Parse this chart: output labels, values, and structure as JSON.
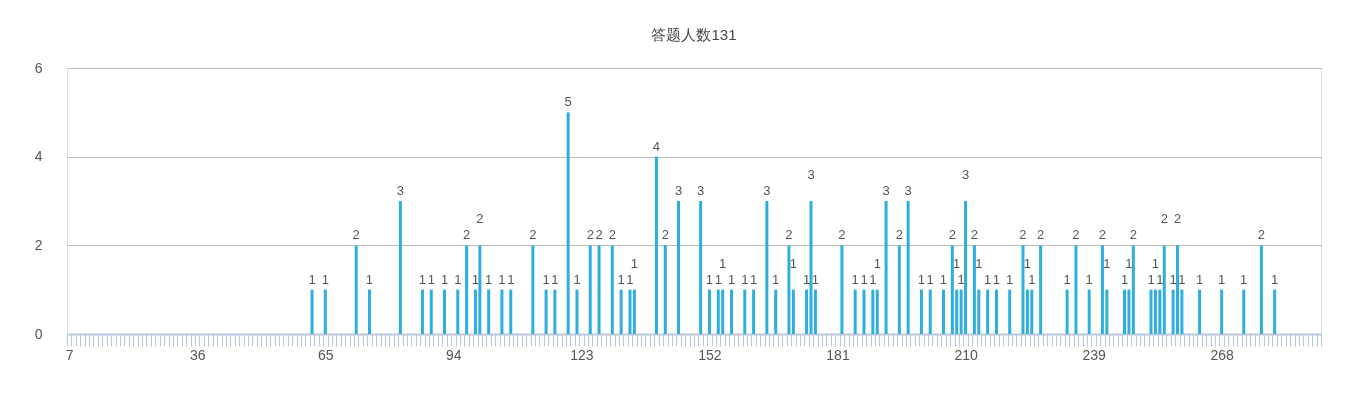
{
  "chart_data": {
    "type": "bar",
    "title": "答题人数131",
    "categories": [
      "7",
      null,
      null,
      null,
      null,
      null,
      null,
      null,
      null,
      null,
      null,
      null,
      null,
      null,
      null,
      null,
      null,
      null,
      null,
      null,
      null,
      null,
      null,
      null,
      null,
      null,
      null,
      null,
      null,
      "36",
      null,
      null,
      null,
      null,
      null,
      null,
      null,
      null,
      null,
      null,
      null,
      null,
      null,
      null,
      null,
      null,
      null,
      null,
      null,
      null,
      null,
      null,
      null,
      null,
      null,
      null,
      null,
      null,
      "65",
      null,
      null,
      null,
      null,
      null,
      null,
      null,
      null,
      null,
      null,
      null,
      null,
      null,
      null,
      null,
      null,
      null,
      null,
      null,
      null,
      null,
      null,
      null,
      null,
      null,
      null,
      null,
      null,
      "94",
      null,
      null,
      null,
      null,
      null,
      null,
      null,
      null,
      null,
      null,
      null,
      null,
      null,
      null,
      null,
      null,
      null,
      null,
      null,
      null,
      null,
      null,
      null,
      null,
      null,
      null,
      null,
      null,
      "123",
      null,
      null,
      null,
      null,
      null,
      null,
      null,
      null,
      null,
      null,
      null,
      null,
      null,
      null,
      null,
      null,
      null,
      null,
      null,
      null,
      null,
      null,
      null,
      null,
      null,
      null,
      null,
      null,
      "152",
      null,
      null,
      null,
      null,
      null,
      null,
      null,
      null,
      null,
      null,
      null,
      null,
      null,
      null,
      null,
      null,
      null,
      null,
      null,
      null,
      null,
      null,
      null,
      null,
      null,
      null,
      null,
      null,
      "181",
      null,
      null,
      null,
      null,
      null,
      null,
      null,
      null,
      null,
      null,
      null,
      null,
      null,
      null,
      null,
      null,
      null,
      null,
      null,
      null,
      null,
      null,
      null,
      null,
      null,
      null,
      null,
      null,
      "210",
      null,
      null,
      null,
      null,
      null,
      null,
      null,
      null,
      null,
      null,
      null,
      null,
      null,
      null,
      null,
      null,
      null,
      null,
      null,
      null,
      null,
      null,
      null,
      null,
      null,
      null,
      null,
      null,
      "239",
      null,
      null,
      null,
      null,
      null,
      null,
      null,
      null,
      null,
      null,
      null,
      null,
      null,
      null,
      null,
      null,
      null,
      null,
      null,
      null,
      null,
      null,
      null,
      null,
      null,
      null,
      null,
      null,
      "268",
      null,
      null,
      null,
      null,
      null,
      null,
      null,
      null,
      null,
      null,
      null,
      null,
      null,
      null,
      null,
      null,
      null,
      null,
      null,
      null,
      null,
      null
    ],
    "values": [
      null,
      null,
      null,
      null,
      null,
      null,
      null,
      null,
      null,
      null,
      null,
      null,
      null,
      null,
      null,
      null,
      null,
      null,
      null,
      null,
      null,
      null,
      null,
      null,
      null,
      null,
      null,
      null,
      null,
      null,
      null,
      null,
      null,
      null,
      null,
      null,
      null,
      null,
      null,
      null,
      null,
      null,
      null,
      null,
      null,
      null,
      null,
      null,
      null,
      null,
      null,
      null,
      null,
      null,
      null,
      1,
      null,
      null,
      1,
      null,
      null,
      null,
      null,
      null,
      null,
      2,
      null,
      null,
      1,
      null,
      null,
      null,
      null,
      null,
      null,
      3,
      null,
      null,
      null,
      null,
      1,
      null,
      1,
      null,
      null,
      1,
      null,
      null,
      1,
      null,
      2,
      null,
      1,
      2,
      null,
      1,
      null,
      null,
      1,
      null,
      1,
      null,
      null,
      null,
      null,
      2,
      null,
      null,
      1,
      null,
      1,
      null,
      null,
      5,
      null,
      1,
      null,
      null,
      2,
      null,
      2,
      null,
      null,
      2,
      null,
      1,
      null,
      1,
      1,
      null,
      null,
      null,
      null,
      4,
      null,
      2,
      null,
      null,
      3,
      null,
      null,
      null,
      null,
      3,
      null,
      1,
      null,
      1,
      1,
      null,
      1,
      null,
      null,
      1,
      null,
      1,
      null,
      null,
      3,
      null,
      1,
      null,
      null,
      2,
      1,
      null,
      null,
      1,
      3,
      1,
      null,
      null,
      null,
      null,
      null,
      2,
      null,
      null,
      1,
      null,
      1,
      null,
      1,
      1,
      null,
      3,
      null,
      null,
      2,
      null,
      3,
      null,
      null,
      1,
      null,
      1,
      null,
      null,
      1,
      null,
      2,
      1,
      1,
      3,
      null,
      2,
      1,
      null,
      1,
      null,
      1,
      null,
      null,
      1,
      null,
      null,
      2,
      1,
      1,
      null,
      2,
      null,
      null,
      null,
      null,
      null,
      1,
      null,
      2,
      null,
      null,
      1,
      null,
      null,
      2,
      1,
      null,
      null,
      null,
      1,
      1,
      2,
      null,
      null,
      null,
      1,
      1,
      1,
      2,
      null,
      1,
      2,
      1,
      null,
      null,
      null,
      1,
      null,
      null,
      null,
      null,
      1,
      null,
      null,
      null,
      null,
      1,
      null,
      null,
      null,
      2,
      null,
      null,
      1,
      null,
      null,
      null,
      null,
      null,
      null,
      null,
      null,
      null,
      null
    ],
    "color": "#2eaee0",
    "data_labels": true,
    "ylim": [
      0,
      6
    ],
    "yticks": [
      0,
      2,
      4,
      6
    ],
    "grid": "y"
  }
}
